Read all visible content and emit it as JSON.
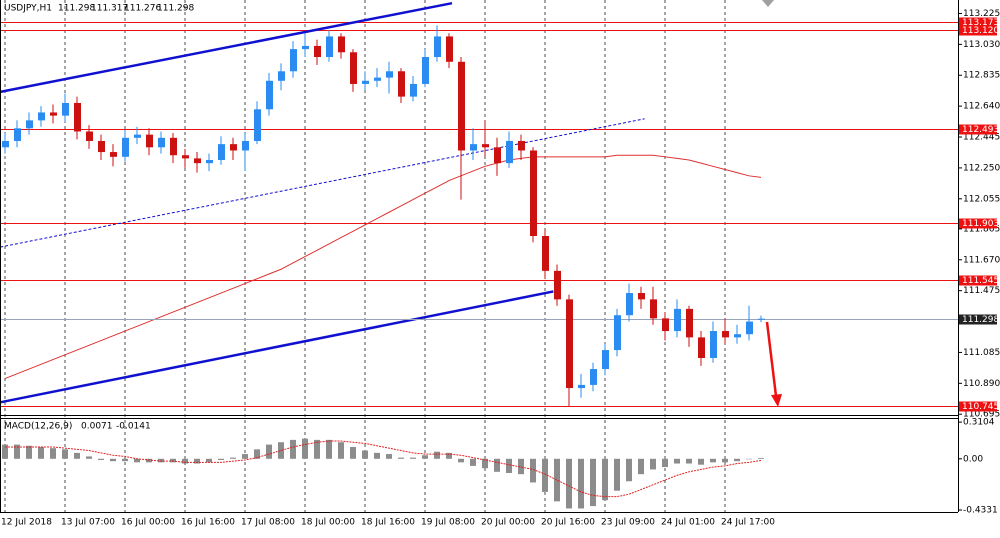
{
  "chart_data": [
    {
      "type": "candlestick",
      "title": "USDJPY,H1",
      "categories": [
        "12 Jul 2018",
        null,
        null,
        null,
        null,
        "13 Jul 07:00",
        null,
        null,
        null,
        null,
        "16 Jul 00:00",
        null,
        null,
        null,
        null,
        "16 Jul 16:00",
        null,
        null,
        null,
        null,
        "17 Jul 08:00",
        null,
        null,
        null,
        null,
        "18 Jul 00:00",
        null,
        null,
        null,
        null,
        "18 Jul 16:00",
        null,
        null,
        null,
        null,
        "19 Jul 08:00",
        null,
        null,
        null,
        null,
        "20 Jul 00:00",
        null,
        null,
        null,
        null,
        "20 Jul 16:00",
        null,
        null,
        null,
        null,
        "23 Jul 09:00",
        null,
        null,
        null,
        null,
        "24 Jul 01:00",
        null,
        null,
        null,
        null,
        "24 Jul 17:00",
        null,
        null,
        null
      ],
      "open": [
        112.38,
        112.42,
        112.5,
        112.55,
        112.6,
        112.58,
        112.66,
        112.48,
        112.42,
        112.35,
        112.32,
        112.44,
        112.46,
        112.38,
        112.44,
        112.33,
        112.31,
        112.28,
        112.3,
        112.4,
        112.36,
        112.42,
        112.62,
        112.8,
        112.86,
        113.0,
        113.02,
        112.95,
        113.08,
        112.98,
        112.78,
        112.8,
        112.82,
        112.86,
        112.7,
        112.78,
        112.95,
        113.08,
        112.92,
        112.36,
        112.4,
        112.38,
        112.28,
        112.42,
        112.36,
        111.82,
        111.6,
        111.42,
        110.86,
        110.88,
        110.98,
        111.1,
        111.32,
        111.46,
        111.42,
        111.3,
        111.22,
        111.36,
        111.18,
        111.05,
        111.22,
        111.18,
        111.2,
        111.298
      ],
      "high": [
        112.47,
        112.55,
        112.6,
        112.64,
        112.65,
        112.72,
        112.7,
        112.52,
        112.46,
        112.4,
        112.49,
        112.51,
        112.5,
        112.48,
        112.47,
        112.37,
        112.35,
        112.34,
        112.45,
        112.44,
        112.47,
        112.67,
        112.85,
        112.91,
        113.05,
        113.1,
        113.06,
        113.12,
        113.1,
        113.0,
        112.86,
        112.88,
        112.92,
        112.88,
        112.83,
        113.0,
        113.15,
        113.1,
        112.95,
        112.5,
        112.55,
        112.44,
        112.48,
        112.46,
        112.38,
        111.86,
        111.64,
        111.45,
        110.95,
        111.02,
        111.14,
        111.36,
        111.52,
        111.5,
        111.5,
        111.34,
        111.42,
        111.38,
        111.22,
        111.28,
        111.3,
        111.26,
        111.38,
        111.317
      ],
      "low": [
        112.34,
        112.38,
        112.46,
        112.51,
        112.53,
        112.54,
        112.43,
        112.37,
        112.3,
        112.26,
        112.29,
        112.4,
        112.33,
        112.34,
        112.28,
        112.25,
        112.22,
        112.23,
        112.27,
        112.3,
        112.23,
        112.4,
        112.58,
        112.74,
        112.82,
        112.95,
        112.9,
        112.92,
        112.94,
        112.73,
        112.74,
        112.76,
        112.72,
        112.66,
        112.67,
        112.76,
        112.92,
        112.88,
        112.05,
        112.3,
        112.32,
        112.2,
        112.25,
        112.3,
        111.78,
        111.55,
        111.38,
        110.745,
        110.8,
        110.84,
        110.94,
        111.06,
        111.28,
        111.36,
        111.26,
        111.16,
        111.18,
        111.12,
        111.0,
        111.02,
        111.14,
        111.14,
        111.16,
        111.276
      ],
      "close": [
        112.42,
        112.5,
        112.55,
        112.6,
        112.58,
        112.66,
        112.48,
        112.42,
        112.35,
        112.32,
        112.44,
        112.46,
        112.38,
        112.44,
        112.33,
        112.31,
        112.28,
        112.3,
        112.4,
        112.36,
        112.42,
        112.62,
        112.8,
        112.86,
        113.0,
        113.02,
        112.95,
        113.08,
        112.98,
        112.78,
        112.8,
        112.82,
        112.86,
        112.7,
        112.78,
        112.95,
        113.08,
        112.92,
        112.36,
        112.4,
        112.38,
        112.28,
        112.42,
        112.36,
        111.82,
        111.6,
        111.42,
        110.86,
        110.88,
        110.98,
        111.1,
        111.32,
        111.46,
        111.42,
        111.3,
        111.22,
        111.36,
        111.18,
        111.05,
        111.22,
        111.18,
        111.2,
        111.28,
        111.298
      ],
      "up_color": "#2a8cf0",
      "down_color": "#cc1111",
      "ma": {
        "color": "#e03030",
        "values": [
          110.92,
          110.95,
          110.98,
          111.01,
          111.04,
          111.07,
          111.1,
          111.13,
          111.16,
          111.19,
          111.22,
          111.25,
          111.28,
          111.31,
          111.34,
          111.37,
          111.4,
          111.43,
          111.46,
          111.49,
          111.52,
          111.55,
          111.58,
          111.61,
          111.65,
          111.69,
          111.73,
          111.77,
          111.81,
          111.85,
          111.89,
          111.93,
          111.97,
          112.01,
          112.05,
          112.09,
          112.13,
          112.17,
          112.2,
          112.23,
          112.26,
          112.28,
          112.3,
          112.31,
          112.32,
          112.32,
          112.32,
          112.32,
          112.32,
          112.32,
          112.32,
          112.33,
          112.33,
          112.33,
          112.33,
          112.32,
          112.31,
          112.3,
          112.28,
          112.26,
          112.24,
          112.22,
          112.2,
          112.19
        ]
      },
      "trendlines": [
        {
          "color": "#1010d0",
          "width": 2.5,
          "dashed": false,
          "x": [
            -0.4,
            37.25
          ],
          "y": [
            112.73,
            113.29
          ]
        },
        {
          "color": "#1010d0",
          "width": 2.5,
          "dashed": false,
          "x": [
            -0.4,
            45.7
          ],
          "y": [
            110.77,
            111.47
          ]
        },
        {
          "color": "#1010d0",
          "width": 1,
          "dashed": true,
          "x": [
            -0.4,
            53.3
          ],
          "y": [
            111.75,
            112.56
          ]
        }
      ],
      "levels": [
        113.173,
        {
          "value": 113.12,
          "label": "113.120"
        },
        112.493,
        111.903,
        111.545,
        110.745
      ],
      "level_color": "#ee1111",
      "price_line_color": "#9aa4b8",
      "ylim": [
        110.69,
        113.31
      ],
      "yticks": [
        113.225,
        {
          "value": 113.03,
          "label": "113.030"
        },
        112.835,
        {
          "value": 112.64,
          "label": "112.640"
        },
        112.445,
        {
          "value": 112.25,
          "label": "112.250"
        },
        112.055,
        111.865,
        {
          "value": 111.67,
          "label": "111.670"
        },
        111.475,
        111.085,
        {
          "value": 110.89,
          "label": "110.890"
        },
        110.695
      ],
      "xgrid": true
    },
    {
      "type": "macd",
      "title": "MACD(12,26,9)",
      "histogram": {
        "color": "#8c8c8c",
        "values": [
          0.12,
          0.12,
          0.11,
          0.1,
          0.09,
          0.08,
          0.05,
          0.02,
          -0.01,
          -0.02,
          -0.02,
          -0.03,
          -0.03,
          -0.03,
          -0.03,
          -0.04,
          -0.04,
          -0.03,
          -0.01,
          0.01,
          0.04,
          0.08,
          0.12,
          0.14,
          0.16,
          0.17,
          0.16,
          0.16,
          0.14,
          0.1,
          0.07,
          0.05,
          0.04,
          0.01,
          0.01,
          0.03,
          0.06,
          0.05,
          -0.03,
          -0.06,
          -0.08,
          -0.11,
          -0.12,
          -0.13,
          -0.2,
          -0.28,
          -0.36,
          -0.42,
          -0.42,
          -0.4,
          -0.35,
          -0.27,
          -0.19,
          -0.13,
          -0.09,
          -0.07,
          -0.04,
          -0.04,
          -0.05,
          -0.03,
          -0.03,
          -0.02,
          0.0,
          0.0071
        ]
      },
      "signal": {
        "color": "#e02020",
        "values": [
          0.1,
          0.1,
          0.1,
          0.1,
          0.1,
          0.09,
          0.08,
          0.07,
          0.05,
          0.03,
          0.02,
          0.0,
          -0.01,
          -0.02,
          -0.02,
          -0.03,
          -0.03,
          -0.03,
          -0.03,
          -0.02,
          -0.01,
          0.01,
          0.04,
          0.07,
          0.1,
          0.12,
          0.14,
          0.15,
          0.15,
          0.14,
          0.13,
          0.11,
          0.09,
          0.07,
          0.05,
          0.04,
          0.04,
          0.04,
          0.03,
          0.01,
          -0.01,
          -0.03,
          -0.05,
          -0.07,
          -0.09,
          -0.13,
          -0.18,
          -0.23,
          -0.28,
          -0.31,
          -0.32,
          -0.32,
          -0.3,
          -0.26,
          -0.22,
          -0.18,
          -0.14,
          -0.11,
          -0.09,
          -0.07,
          -0.06,
          -0.04,
          -0.03,
          -0.0141
        ]
      },
      "ylim": [
        -0.45,
        0.345
      ],
      "yticks": [
        0.3104,
        {
          "value": 0,
          "label": "0.00"
        },
        -0.4331
      ]
    }
  ]
}
